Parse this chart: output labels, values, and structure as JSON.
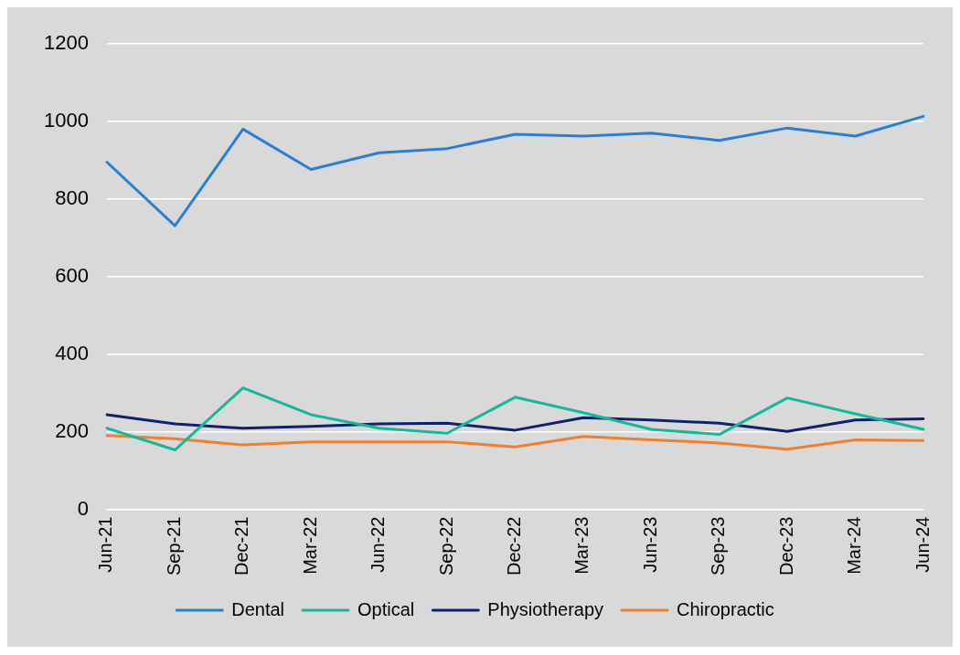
{
  "chart_data": {
    "type": "line",
    "categories": [
      "Jun-21",
      "Sep-21",
      "Dec-21",
      "Mar-22",
      "Jun-22",
      "Sep-22",
      "Dec-22",
      "Mar-23",
      "Jun-23",
      "Sep-23",
      "Dec-23",
      "Mar-24",
      "Jun-24"
    ],
    "series": [
      {
        "name": "Dental",
        "color": "#2a7fd4",
        "values": [
          895,
          731,
          980,
          876,
          919,
          930,
          967,
          962,
          970,
          951,
          983,
          962,
          1013
        ]
      },
      {
        "name": "Optical",
        "color": "#16b89c",
        "values": [
          209,
          153,
          313,
          244,
          209,
          196,
          289,
          249,
          206,
          193,
          287,
          246,
          206
        ]
      },
      {
        "name": "Physiotherapy",
        "color": "#0c2270",
        "values": [
          244,
          220,
          209,
          214,
          220,
          222,
          204,
          236,
          230,
          222,
          201,
          230,
          233
        ]
      },
      {
        "name": "Chiropractic",
        "color": "#f07f2e",
        "values": [
          190,
          182,
          166,
          174,
          174,
          174,
          161,
          188,
          179,
          171,
          155,
          179,
          177
        ]
      }
    ],
    "ylim": [
      0,
      1200
    ],
    "yticks": [
      0,
      200,
      400,
      600,
      800,
      1000,
      1200
    ],
    "grid": "y",
    "legend": "bottom",
    "marker": "none",
    "line_style": "solid"
  }
}
